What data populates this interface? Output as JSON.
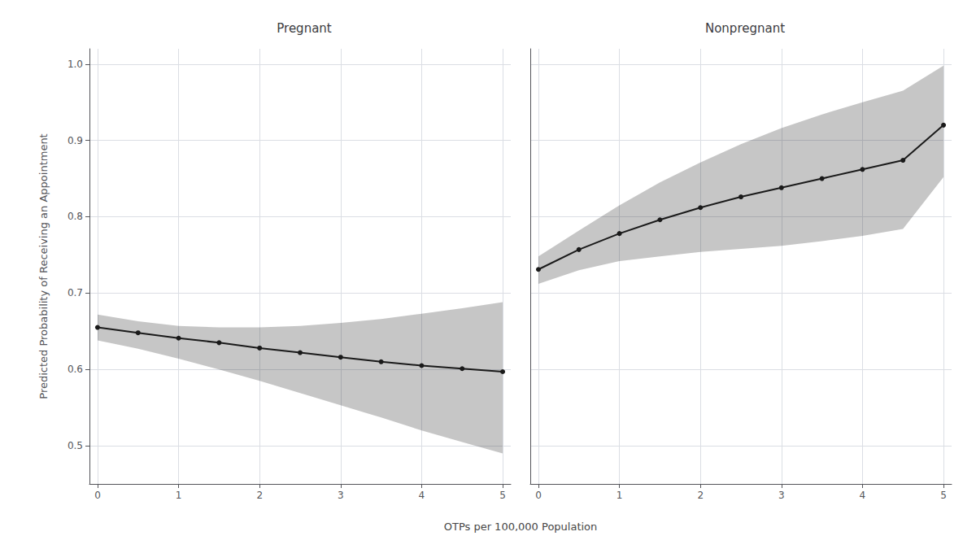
{
  "chart_data": [
    {
      "type": "line",
      "title": "Pregnant",
      "xlabel": "OTPs per 100,000 Population",
      "ylabel": "Predicted Probability of Receiving an Appointment",
      "x": [
        0.0,
        0.5,
        1.0,
        1.5,
        2.0,
        2.5,
        3.0,
        3.5,
        4.0,
        4.5,
        5.0
      ],
      "values": [
        0.655,
        0.648,
        0.641,
        0.635,
        0.628,
        0.622,
        0.616,
        0.61,
        0.605,
        0.601,
        0.597
      ],
      "ci_upper": [
        0.672,
        0.663,
        0.657,
        0.655,
        0.655,
        0.657,
        0.661,
        0.666,
        0.673,
        0.68,
        0.688
      ],
      "ci_lower": [
        0.638,
        0.627,
        0.614,
        0.6,
        0.585,
        0.569,
        0.553,
        0.537,
        0.52,
        0.505,
        0.49
      ],
      "color": "#1a1a1a",
      "marker": "circle",
      "xlim": [
        -0.1,
        5.1
      ],
      "xticks": [
        0,
        1,
        2,
        3,
        4,
        5
      ],
      "ylim": [
        0.45,
        1.02
      ],
      "yticks": [
        0.5,
        0.6,
        0.7,
        0.8,
        0.9,
        {
          "value": 1.0,
          "label": "1.0"
        }
      ],
      "grid": true
    },
    {
      "type": "line",
      "title": "Nonpregnant",
      "x": [
        0.0,
        0.5,
        1.0,
        1.5,
        2.0,
        2.5,
        3.0,
        3.5,
        4.0,
        4.5,
        5.0
      ],
      "values": [
        0.731,
        0.757,
        0.778,
        0.796,
        0.812,
        0.826,
        0.838,
        0.85,
        0.862,
        0.874,
        0.92
      ],
      "ci_upper": [
        0.748,
        0.782,
        0.815,
        0.845,
        0.871,
        0.895,
        0.916,
        0.934,
        0.95,
        0.965,
        0.998
      ],
      "ci_lower": [
        0.712,
        0.73,
        0.742,
        0.748,
        0.754,
        0.758,
        0.762,
        0.768,
        0.775,
        0.784,
        0.852
      ],
      "color": "#1a1a1a",
      "marker": "circle",
      "xlim": [
        -0.1,
        5.1
      ],
      "xticks": [
        0,
        1,
        2,
        3,
        4,
        5
      ],
      "ylim": [
        0.45,
        1.02
      ],
      "yticks": [
        0.5,
        0.6,
        0.7,
        0.8,
        0.9,
        {
          "value": 1.0,
          "label": "1.0"
        }
      ],
      "grid": true,
      "tick_labels": "x"
    }
  ]
}
